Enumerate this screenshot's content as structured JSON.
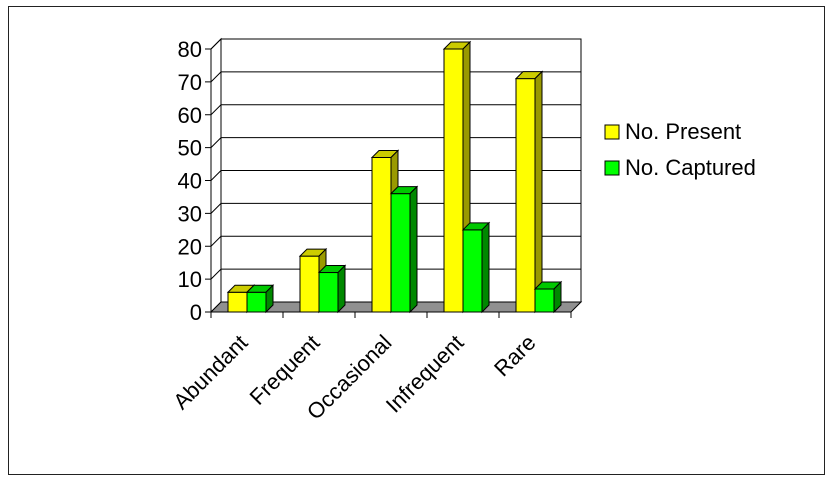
{
  "colors": {
    "present_front": "#ffff00",
    "present_top": "#cccc00",
    "present_side": "#9a9a00",
    "captured_front": "#00ff00",
    "captured_top": "#00c800",
    "captured_side": "#008800",
    "wall": "#ffffff",
    "floor": "#909090",
    "gridline": "#000000"
  },
  "chart_data": {
    "type": "bar",
    "style": "3d-clustered-column",
    "title": "",
    "xlabel": "",
    "ylabel": "",
    "categories": [
      "Abundant",
      "Frequent",
      "Occasional",
      "Infrequent",
      "Rare"
    ],
    "series": [
      {
        "name": "No. Present",
        "color": "#ffff00",
        "values": [
          6,
          17,
          47,
          80,
          71
        ]
      },
      {
        "name": "No. Captured",
        "color": "#00ff00",
        "values": [
          6,
          12,
          36,
          25,
          7
        ]
      }
    ],
    "ylim": [
      0,
      80
    ],
    "yticks": [
      "0",
      "10",
      "20",
      "30",
      "40",
      "50",
      "60",
      "70",
      "80"
    ],
    "grid": true,
    "legend_position": "right"
  }
}
